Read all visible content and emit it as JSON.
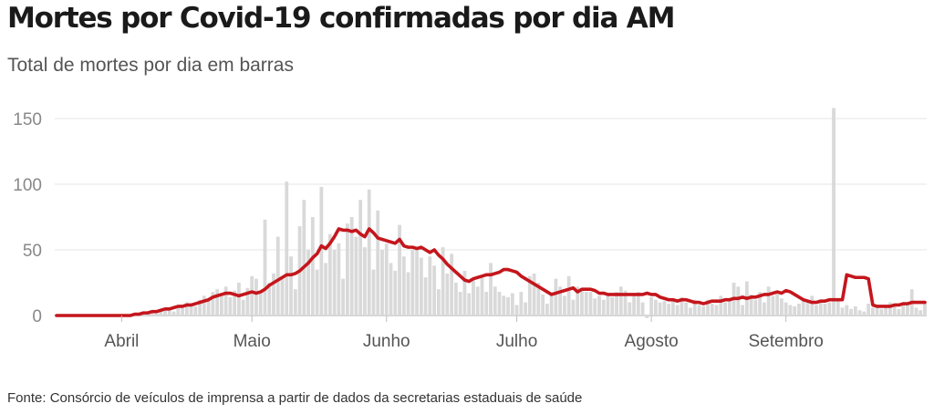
{
  "title": "Mortes por Covid-19 confirmadas por dia AM",
  "subtitle": "Total de mortes por dia em barras",
  "source": "Fonte: Consórcio de veículos de imprensa a partir de dados da secretarias estaduais de saúde",
  "colors": {
    "bars": "#d9d9d9",
    "average_line": "#c4161c",
    "grid": "#e6e6e6",
    "text": "#555555"
  },
  "chart_data": {
    "type": "bar",
    "overlay": "line",
    "x_label": "",
    "y_label": "",
    "y_ticks": [
      0,
      50,
      100,
      150
    ],
    "ylim": [
      0,
      150
    ],
    "grid": true,
    "month_labels": [
      {
        "label": "Abril",
        "day_index": 15
      },
      {
        "label": "Maio",
        "day_index": 45
      },
      {
        "label": "Junho",
        "day_index": 76
      },
      {
        "label": "Julho",
        "day_index": 106
      },
      {
        "label": "Agosto",
        "day_index": 137
      },
      {
        "label": "Setembro",
        "day_index": 168
      }
    ],
    "daily_deaths": [
      0,
      0,
      0,
      0,
      0,
      0,
      0,
      0,
      0,
      0,
      0,
      0,
      0,
      0,
      0,
      0,
      0,
      0,
      1,
      2,
      1,
      3,
      2,
      4,
      3,
      5,
      4,
      3,
      6,
      8,
      10,
      9,
      7,
      12,
      15,
      11,
      18,
      20,
      16,
      22,
      14,
      19,
      25,
      12,
      21,
      30,
      28,
      18,
      73,
      25,
      32,
      60,
      28,
      102,
      45,
      20,
      68,
      88,
      50,
      75,
      35,
      98,
      40,
      62,
      50,
      55,
      28,
      70,
      75,
      60,
      88,
      52,
      96,
      35,
      80,
      50,
      55,
      40,
      34,
      69,
      45,
      33,
      50,
      52,
      44,
      29,
      45,
      38,
      20,
      52,
      32,
      47,
      25,
      18,
      34,
      17,
      27,
      22,
      30,
      18,
      40,
      22,
      18,
      15,
      14,
      17,
      8,
      18,
      10,
      30,
      32,
      25,
      16,
      9,
      18,
      28,
      22,
      15,
      30,
      12,
      22,
      20,
      18,
      18,
      13,
      15,
      12,
      17,
      14,
      18,
      22,
      19,
      10,
      15,
      18,
      10,
      -2,
      14,
      12,
      10,
      11,
      9,
      12,
      8,
      14,
      10,
      6,
      12,
      8,
      7,
      12,
      9,
      8,
      15,
      10,
      12,
      25,
      22,
      8,
      26,
      16,
      12,
      18,
      10,
      22,
      15,
      17,
      13,
      10,
      8,
      7,
      9,
      12,
      10,
      15,
      8,
      12,
      9,
      10,
      158,
      11,
      6,
      8,
      5,
      7,
      4,
      3,
      9,
      6,
      8,
      5,
      6,
      10,
      7,
      5,
      9,
      8,
      20,
      6,
      4,
      9
    ],
    "moving_average": [
      0,
      0,
      0,
      0,
      0,
      0,
      0,
      0,
      0,
      0,
      0,
      0,
      0,
      0,
      0,
      0,
      0,
      0,
      1,
      1,
      2,
      2,
      3,
      3,
      4,
      5,
      5,
      6,
      7,
      7,
      8,
      8,
      9,
      10,
      11,
      12,
      14,
      15,
      16,
      17,
      17,
      16,
      15,
      16,
      17,
      18,
      17,
      18,
      20,
      23,
      25,
      27,
      29,
      31,
      31,
      32,
      34,
      37,
      40,
      44,
      47,
      53,
      51,
      55,
      60,
      66,
      65,
      65,
      64,
      65,
      62,
      60,
      66,
      63,
      59,
      58,
      57,
      56,
      55,
      58,
      53,
      52,
      52,
      51,
      52,
      50,
      48,
      50,
      46,
      43,
      39,
      36,
      33,
      30,
      27,
      26,
      28,
      29,
      30,
      31,
      31,
      32,
      33,
      35,
      35,
      34,
      33,
      30,
      28,
      26,
      24,
      22,
      20,
      18,
      16,
      17,
      18,
      19,
      20,
      21,
      18,
      20,
      20,
      20,
      19,
      17,
      17,
      16,
      16,
      16,
      16,
      16,
      16,
      16,
      16,
      16,
      17,
      16,
      16,
      14,
      13,
      12,
      12,
      11,
      12,
      12,
      11,
      10,
      10,
      9,
      10,
      11,
      11,
      11,
      12,
      12,
      13,
      13,
      14,
      13,
      14,
      14,
      15,
      16,
      16,
      17,
      18,
      17,
      19,
      18,
      16,
      14,
      12,
      11,
      10,
      10,
      11,
      11,
      12,
      12,
      12,
      12,
      31,
      30,
      29,
      29,
      29,
      28,
      8,
      7,
      7,
      7,
      7,
      8,
      8,
      9,
      9,
      10,
      10,
      10,
      10
    ]
  }
}
